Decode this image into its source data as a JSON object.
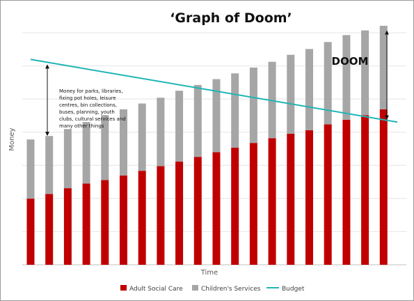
{
  "chart_data": {
    "type": "bar",
    "stacked": true,
    "title": "‘Graph of Doom’",
    "xlabel": "Time",
    "ylabel": "Money",
    "x_tick_labels": false,
    "y_tick_labels": false,
    "grid": true,
    "legend_position": "bottom",
    "ylim": [
      0,
      100
    ],
    "categories": [
      1,
      2,
      3,
      4,
      5,
      6,
      7,
      8,
      9,
      10,
      11,
      12,
      13,
      14,
      15,
      16,
      17,
      18,
      19,
      20
    ],
    "series": [
      {
        "name": "Adult Social Care",
        "kind": "bar",
        "color": "#c00000",
        "values": [
          28.5,
          30.5,
          33.0,
          35.0,
          36.5,
          38.5,
          40.5,
          42.5,
          44.5,
          46.5,
          48.5,
          50.5,
          52.5,
          54.5,
          56.5,
          58.0,
          60.5,
          62.5,
          64.5,
          67.0
        ]
      },
      {
        "name": "Children's Services",
        "kind": "bar",
        "color": "#a6a6a6",
        "values": [
          25.5,
          25.0,
          25.5,
          26.5,
          28.0,
          28.5,
          29.0,
          29.5,
          30.5,
          31.0,
          31.5,
          32.0,
          32.5,
          33.0,
          34.0,
          35.0,
          35.5,
          36.5,
          36.5,
          36.0
        ]
      },
      {
        "name": "Budget",
        "kind": "line",
        "color": "#1fb5b5",
        "start": 88.5,
        "end": 61.5
      }
    ],
    "annotations": {
      "services_note": [
        "Money for parks, libraries,",
        "fixing pot holes, leisure",
        "centres, bin collections,",
        "buses, planning, youth",
        "clubs, cultural services and",
        "many other things"
      ],
      "doom_label": "DOOM"
    }
  }
}
